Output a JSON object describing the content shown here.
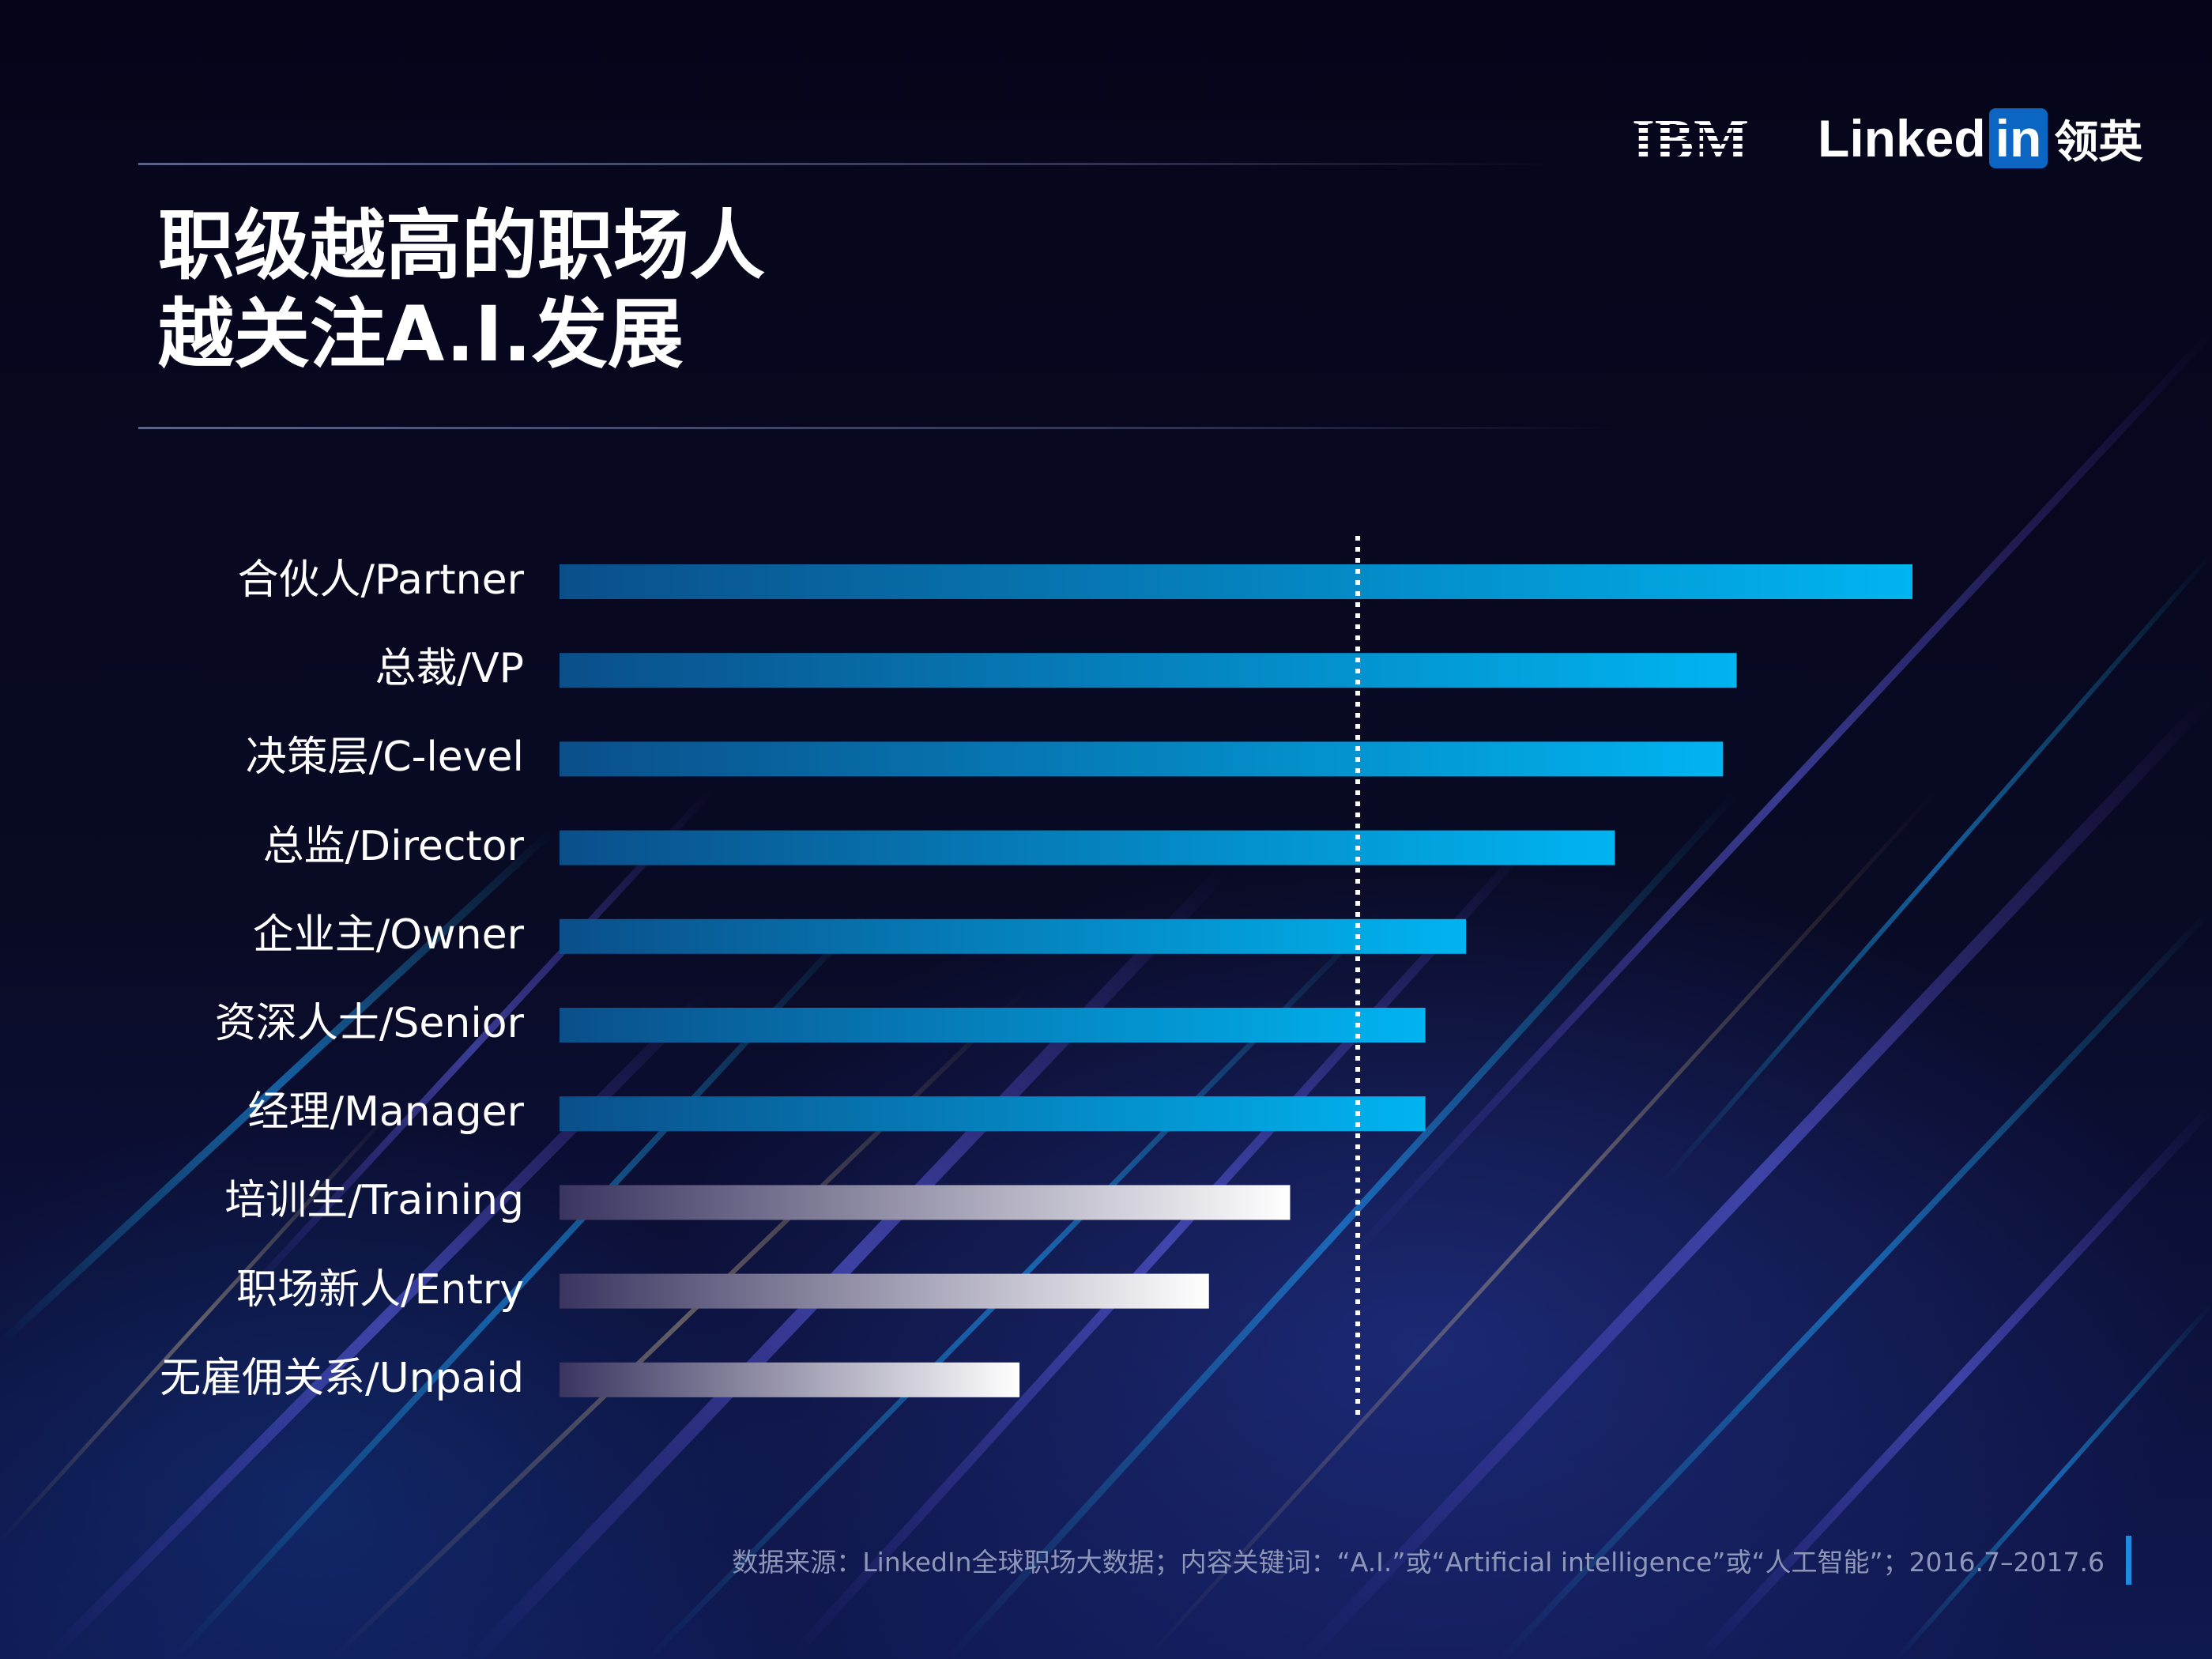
{
  "title": {
    "line1": "职级越高的职场人",
    "line2": "越关注A.I.发展"
  },
  "logos": {
    "ibm": "IBM",
    "linkedin_text": "Linked",
    "linkedin_in": "in",
    "linkedin_cn": "领英"
  },
  "colors": {
    "accent_bar": "#00b4f0",
    "accent_bar_dark": "#0a4f8a",
    "light_bar": "#ffffff",
    "light_bar_dark": "#3a3560",
    "source_accent": "#1e8ae0"
  },
  "chart_data": {
    "type": "bar",
    "orientation": "horizontal",
    "title": "职级越高的职场人越关注A.I.发展",
    "xlabel": "",
    "ylabel": "",
    "xlim": [
      0,
      100
    ],
    "grid": false,
    "reference_line": {
      "style": "dotted",
      "value": 59
    },
    "categories": [
      "合伙人/Partner",
      "总裁/VP",
      "决策层/C-level",
      "总监/Director",
      "企业主/Owner",
      "资深人士/Senior",
      "经理/Manager",
      "培训生/Training",
      "职场新人/Entry",
      "无雇佣关系/Unpaid"
    ],
    "values": [
      100,
      87,
      86,
      78,
      67,
      64,
      64,
      54,
      48,
      34
    ],
    "highlight": [
      true,
      true,
      true,
      true,
      true,
      true,
      true,
      false,
      false,
      false
    ]
  },
  "source": {
    "text": "数据来源：LinkedIn全球职场大数据；内容关键词：“A.I.”或“Artificial intelligence”或“人工智能”；2016.7–2017.6"
  }
}
